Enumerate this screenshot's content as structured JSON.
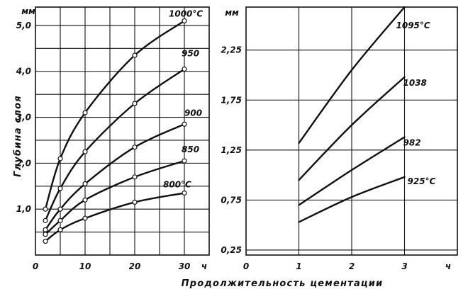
{
  "xlabel": "Продолжительность цементации",
  "ylabel": "Глубина слоя",
  "chart_data": [
    {
      "type": "line",
      "title": "",
      "xlabel": "Продолжительность цементации",
      "ylabel": "Глубина слоя",
      "x_unit": "ч",
      "y_unit": "мм",
      "xlim": [
        0,
        35
      ],
      "ylim": [
        0,
        5.4
      ],
      "grid": true,
      "x_ticks": [
        0,
        10,
        20,
        30
      ],
      "x_tick_labels": [
        "0",
        "10",
        "20",
        "30"
      ],
      "y_ticks": [
        1.0,
        2.0,
        3.0,
        4.0,
        5.0
      ],
      "y_tick_labels": [
        "1,0",
        "2,0",
        "3,0",
        "4,0",
        "5,0"
      ],
      "series": [
        {
          "name": "1000°C",
          "x": [
            2,
            5,
            10,
            20,
            30
          ],
          "y": [
            1.0,
            2.1,
            3.1,
            4.35,
            5.1
          ]
        },
        {
          "name": "950",
          "x": [
            2,
            5,
            10,
            20,
            30
          ],
          "y": [
            0.75,
            1.45,
            2.25,
            3.3,
            4.05
          ]
        },
        {
          "name": "900",
          "x": [
            2,
            5,
            10,
            20,
            30
          ],
          "y": [
            0.55,
            1.0,
            1.55,
            2.35,
            2.85
          ]
        },
        {
          "name": "850",
          "x": [
            2,
            5,
            10,
            20,
            30
          ],
          "y": [
            0.45,
            0.75,
            1.2,
            1.7,
            2.05
          ]
        },
        {
          "name": "800°C",
          "x": [
            2,
            5,
            10,
            20,
            30
          ],
          "y": [
            0.3,
            0.55,
            0.8,
            1.15,
            1.35
          ]
        }
      ]
    },
    {
      "type": "line",
      "title": "",
      "xlabel": "Продолжительность цементации",
      "ylabel": "",
      "x_unit": "ч",
      "y_unit": "мм",
      "xlim": [
        0,
        4
      ],
      "ylim": [
        0.2,
        2.68
      ],
      "grid": true,
      "x_ticks": [
        0,
        1,
        2,
        3
      ],
      "x_tick_labels": [
        "0",
        "1",
        "2",
        "3"
      ],
      "y_ticks": [
        0.25,
        0.75,
        1.25,
        1.75,
        2.25
      ],
      "y_tick_labels": [
        "0,25",
        "0,75",
        "1,25",
        "1,75",
        "2,25"
      ],
      "series": [
        {
          "name": "1095°C",
          "x": [
            1,
            2,
            3
          ],
          "y": [
            1.32,
            2.05,
            2.68
          ]
        },
        {
          "name": "1038",
          "x": [
            1,
            2,
            3
          ],
          "y": [
            0.95,
            1.5,
            1.98
          ]
        },
        {
          "name": "982",
          "x": [
            1,
            2,
            3
          ],
          "y": [
            0.7,
            1.05,
            1.38
          ]
        },
        {
          "name": "925°C",
          "x": [
            1,
            2,
            3
          ],
          "y": [
            0.53,
            0.78,
            0.98
          ]
        }
      ]
    }
  ]
}
